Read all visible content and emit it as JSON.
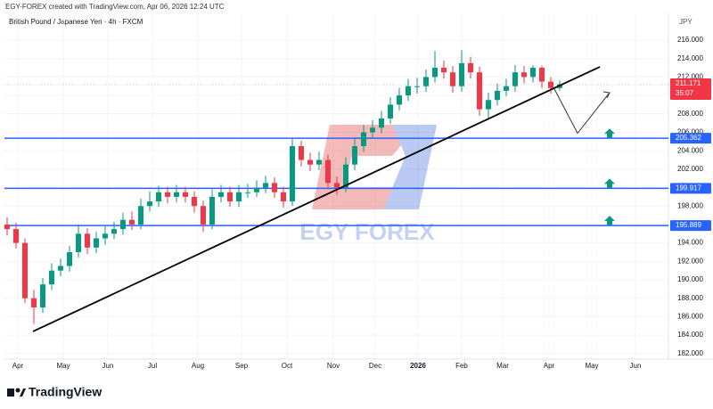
{
  "header": "EGY-FOREX created with TradingView.com, Apr 06, 2026 12:24 UTC",
  "brand": "TradingView",
  "watermark": "EGY FOREX",
  "chart_data": {
    "type": "candlestick",
    "title": "British Pound / Japanese Yen · 4h · FXCM",
    "y_label": "JPY",
    "up_color": "#089981",
    "down_color": "#f23645",
    "xlim": [
      -0.3,
      74.2
    ],
    "xticks": [
      {
        "value": 1.2,
        "label": "Apr"
      },
      {
        "value": 6.3,
        "label": "May"
      },
      {
        "value": 11.3,
        "label": "Jun"
      },
      {
        "value": 16.3,
        "label": "Jul"
      },
      {
        "value": 21.4,
        "label": "Aug"
      },
      {
        "value": 26.3,
        "label": "Sep"
      },
      {
        "value": 31.4,
        "label": "Oct"
      },
      {
        "value": 36.6,
        "label": "Nov"
      },
      {
        "value": 41.3,
        "label": "Dec"
      },
      {
        "value": 46.1,
        "label": "2026"
      },
      {
        "value": 51,
        "label": "Feb"
      },
      {
        "value": 55.6,
        "label": "Mar"
      },
      {
        "value": 60.8,
        "label": "Apr"
      },
      {
        "value": 65.6,
        "label": "May"
      },
      {
        "value": 70.5,
        "label": "Jun"
      }
    ],
    "ylim": [
      181.4,
      218.9
    ],
    "yticks": [
      {
        "value": 182,
        "label": "182.000"
      },
      {
        "value": 184,
        "label": "184.000"
      },
      {
        "value": 186,
        "label": "186.000"
      },
      {
        "value": 188,
        "label": "188.000"
      },
      {
        "value": 190,
        "label": "190.000"
      },
      {
        "value": 192,
        "label": "192.000"
      },
      {
        "value": 194,
        "label": "194.000"
      },
      {
        "value": 196,
        "label": "196.000"
      },
      {
        "value": 198,
        "label": "198.000"
      },
      {
        "value": 200,
        "label": "200.000"
      },
      {
        "value": 202,
        "label": "202.000"
      },
      {
        "value": 204,
        "label": "204.000"
      },
      {
        "value": 206,
        "label": "206.000"
      },
      {
        "value": 208,
        "label": "208.000"
      },
      {
        "value": 210,
        "label": "210.000"
      },
      {
        "value": 212,
        "label": "212.000"
      },
      {
        "value": 214,
        "label": "214.000"
      },
      {
        "value": 216,
        "label": "216.000"
      }
    ],
    "ohlc": [
      [
        196,
        196.8,
        194.8,
        195.5
      ],
      [
        195.5,
        196.2,
        193.4,
        194
      ],
      [
        194,
        194.5,
        187.5,
        188
      ],
      [
        188,
        188.9,
        185.2,
        187
      ],
      [
        187,
        190.2,
        186.4,
        189.5
      ],
      [
        189.5,
        191.8,
        188.9,
        191
      ],
      [
        191,
        192.3,
        190.4,
        191.5
      ],
      [
        191.5,
        193.7,
        190.9,
        193
      ],
      [
        193,
        196,
        192.4,
        195
      ],
      [
        195,
        195.6,
        192.8,
        193.5
      ],
      [
        193.5,
        195.2,
        192.9,
        194.5
      ],
      [
        194.5,
        195.8,
        193.8,
        195
      ],
      [
        195,
        196.3,
        194.4,
        195.5
      ],
      [
        195.5,
        197.3,
        194.9,
        196.5
      ],
      [
        196.5,
        197.4,
        195.4,
        196
      ],
      [
        196,
        198.8,
        195.5,
        198
      ],
      [
        198,
        199.6,
        197.4,
        198.5
      ],
      [
        198.5,
        200.2,
        197.9,
        199.5
      ],
      [
        199.5,
        200.1,
        198.3,
        199
      ],
      [
        199,
        200.3,
        198.4,
        199.5
      ],
      [
        199.5,
        200.1,
        198.4,
        199
      ],
      [
        199,
        199.6,
        197.3,
        198
      ],
      [
        198,
        198.6,
        195.2,
        196
      ],
      [
        196,
        199.8,
        195.5,
        199
      ],
      [
        199,
        200.3,
        198.4,
        199.5
      ],
      [
        199.5,
        200.1,
        197.9,
        198.5
      ],
      [
        198.5,
        200.3,
        197.9,
        199.5
      ],
      [
        199.5,
        200.4,
        198.9,
        199.5
      ],
      [
        199.5,
        200.8,
        199,
        200
      ],
      [
        200,
        201.3,
        199.4,
        200.5
      ],
      [
        200.5,
        201.1,
        198.9,
        199.5
      ],
      [
        199.5,
        200.1,
        197.8,
        198.5
      ],
      [
        198.5,
        205.4,
        198,
        204.5
      ],
      [
        204.5,
        205.1,
        202.3,
        203
      ],
      [
        203,
        203.8,
        201.8,
        202.5
      ],
      [
        202.5,
        203.9,
        201.9,
        203
      ],
      [
        203,
        203.6,
        199.8,
        200.5
      ],
      [
        200.5,
        201.2,
        199.2,
        200
      ],
      [
        200,
        203.3,
        199.5,
        202.5
      ],
      [
        202.5,
        205.3,
        201.9,
        204.5
      ],
      [
        204.5,
        206.8,
        203.9,
        206
      ],
      [
        206,
        207.3,
        205.4,
        206.5
      ],
      [
        206.5,
        208.3,
        205.9,
        207.5
      ],
      [
        207.5,
        209.8,
        206.9,
        209
      ],
      [
        209,
        210.8,
        208.4,
        210
      ],
      [
        210,
        211.8,
        209.4,
        211
      ],
      [
        211,
        211.9,
        210.2,
        211
      ],
      [
        211,
        212.8,
        210.4,
        212
      ],
      [
        212,
        214.8,
        211.4,
        213
      ],
      [
        213,
        213.8,
        211.8,
        212.5
      ],
      [
        212.5,
        213.2,
        210.3,
        211
      ],
      [
        211,
        214.9,
        210.4,
        213.5
      ],
      [
        213.5,
        214.2,
        211.8,
        212.5
      ],
      [
        212.5,
        213.1,
        207.8,
        208.5
      ],
      [
        208.5,
        210.3,
        207.4,
        209.5
      ],
      [
        209.5,
        211.3,
        208.9,
        210.5
      ],
      [
        210.5,
        211.8,
        209.9,
        211
      ],
      [
        211,
        213.3,
        210.4,
        212.5
      ],
      [
        212.5,
        213.2,
        211.3,
        212
      ],
      [
        212,
        213.3,
        211.4,
        213
      ],
      [
        213,
        213.2,
        210.8,
        211.5
      ],
      [
        211.5,
        212,
        210.2,
        210.8
      ],
      [
        210.8,
        211.6,
        210.5,
        211.2
      ]
    ],
    "levels": [
      205.362,
      199.917,
      195.889
    ],
    "level_color": "#2962ff",
    "last_price": 211.171,
    "countdown": "35:07",
    "trendline": {
      "x": [
        2.9,
        66.5
      ],
      "y": [
        184.4,
        213.1
      ]
    },
    "projection": {
      "x": [
        61.4,
        64,
        67.6
      ],
      "y": [
        210.7,
        205.9,
        210.3
      ]
    },
    "arrow_x": 67.6
  }
}
